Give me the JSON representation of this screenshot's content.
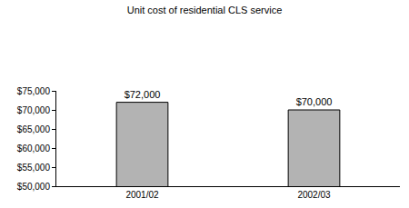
{
  "chart_data": {
    "type": "bar",
    "title": "Unit cost of residential CLS service",
    "categories": [
      "2001/02",
      "2002/03"
    ],
    "values": [
      72000,
      70000
    ],
    "value_labels": [
      "$72,000",
      "$70,000"
    ],
    "data_labels": true,
    "color": "#b3b3b3",
    "ylim": [
      50000,
      75000
    ],
    "yticks": [
      {
        "value": 50000,
        "label": "$50,000"
      },
      {
        "value": 55000,
        "label": "$55,000"
      },
      {
        "value": 60000,
        "label": "$60,000"
      },
      {
        "value": 65000,
        "label": "$65,000"
      },
      {
        "value": 70000,
        "label": "$70,000"
      },
      {
        "value": 75000,
        "label": "$75,000"
      }
    ],
    "grid": false
  }
}
